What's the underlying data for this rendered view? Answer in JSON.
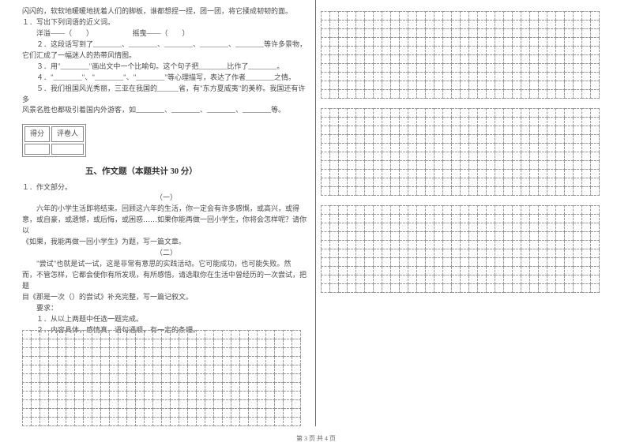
{
  "left": {
    "l1": "闪闪的，软软地暖暖地抚着人们的脚板，谁都想捏一捏，团一团，将它揉成韧韧的面。",
    "l2": "１．写出下列词语的近义词。",
    "l3": "　　洋溢——（　　）　　　　　　摇曳——（　　）",
    "l4": "　　２．这段话写到了________、________、________、________、________等许多景物，",
    "l5": "它们汇成了一幅迷人的热带风情图。",
    "l6": "　　３．用\"________\"画出文中一个比喻句。这个句子把________比作了________。",
    "l7": "　　４．\"________\"、\"________\"、\"________\"等心理描写，表达了作者________之情。",
    "l8": "　　５．我们祖国风光秀丽，三亚在我国的______省，有\"东方夏威夷\"的美称。我国还有许多",
    "l9": "风景名胜也都吸引着国内外游客，如________、________、________、________等。",
    "scoreCols": [
      "得分",
      "评卷人"
    ],
    "sectionTitle": "五、作文题（本题共计 30 分）",
    "essayLabel": "１．作文部分。",
    "essay1Title": "（一）",
    "essay1a": "六年的小学生活即将结束。回顾这六年的生活，你一定会有许多感慨，或高兴，或得",
    "essay1b": "意，或自豪，或遗憾，或后悔，或困惑……如果你能再做一回小学生，你将会怎样呢？请你以",
    "essay1c": "《如果，我能再做一回小学生》为题，写一篇文章。",
    "essay2Title": "（二）",
    "essay2a": "\"尝试\"也就是试一试，这是非常有意思的实践活动。它可能成功，也可能失败。然",
    "essay2b": "而，不管怎样，它都会使你有所发现，有所感悟。请选取你在生活中曾经历的一次尝试，把题",
    "essay2c": "目《那是一次（）的尝试》补充完整，写一篇记叙文。",
    "reqLabel": "要求：",
    "req1": "１．从以上两题中任选一题完成。",
    "req2": "２．内容具体，感情真，语句通顺，有一定的条理。"
  },
  "footer": "第 3 页 共 4 页",
  "grids": {
    "rightBlocks": [
      {
        "rows": 10,
        "cols": 32
      },
      {
        "rows": 10,
        "cols": 32
      },
      {
        "rows": 10,
        "cols": 32
      }
    ],
    "leftGrid": {
      "rows": 11,
      "cols": 32
    },
    "cellColor": "#999999",
    "cellSize": 11
  }
}
